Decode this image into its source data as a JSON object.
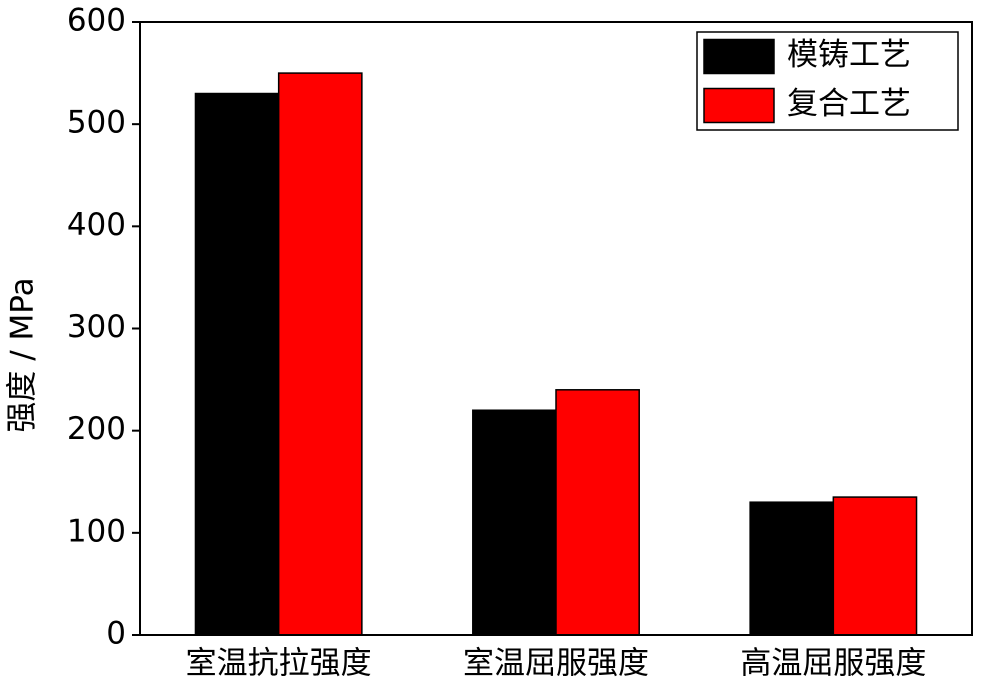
{
  "chart_data": {
    "type": "bar",
    "y_label": "强度 / MPa",
    "categories": [
      "室温抗拉强度",
      "室温屈服强度",
      "高温屈服强度"
    ],
    "series": [
      {
        "name": "模铸工艺",
        "color": "#000000",
        "values": [
          530,
          220,
          130
        ]
      },
      {
        "name": "复合工艺",
        "color": "#ff0000",
        "values": [
          550,
          240,
          135
        ]
      }
    ],
    "ylim": [
      0,
      600
    ],
    "yticks": [
      0,
      100,
      200,
      300,
      400,
      500,
      600
    ],
    "grid": false,
    "legend": "upper right"
  }
}
